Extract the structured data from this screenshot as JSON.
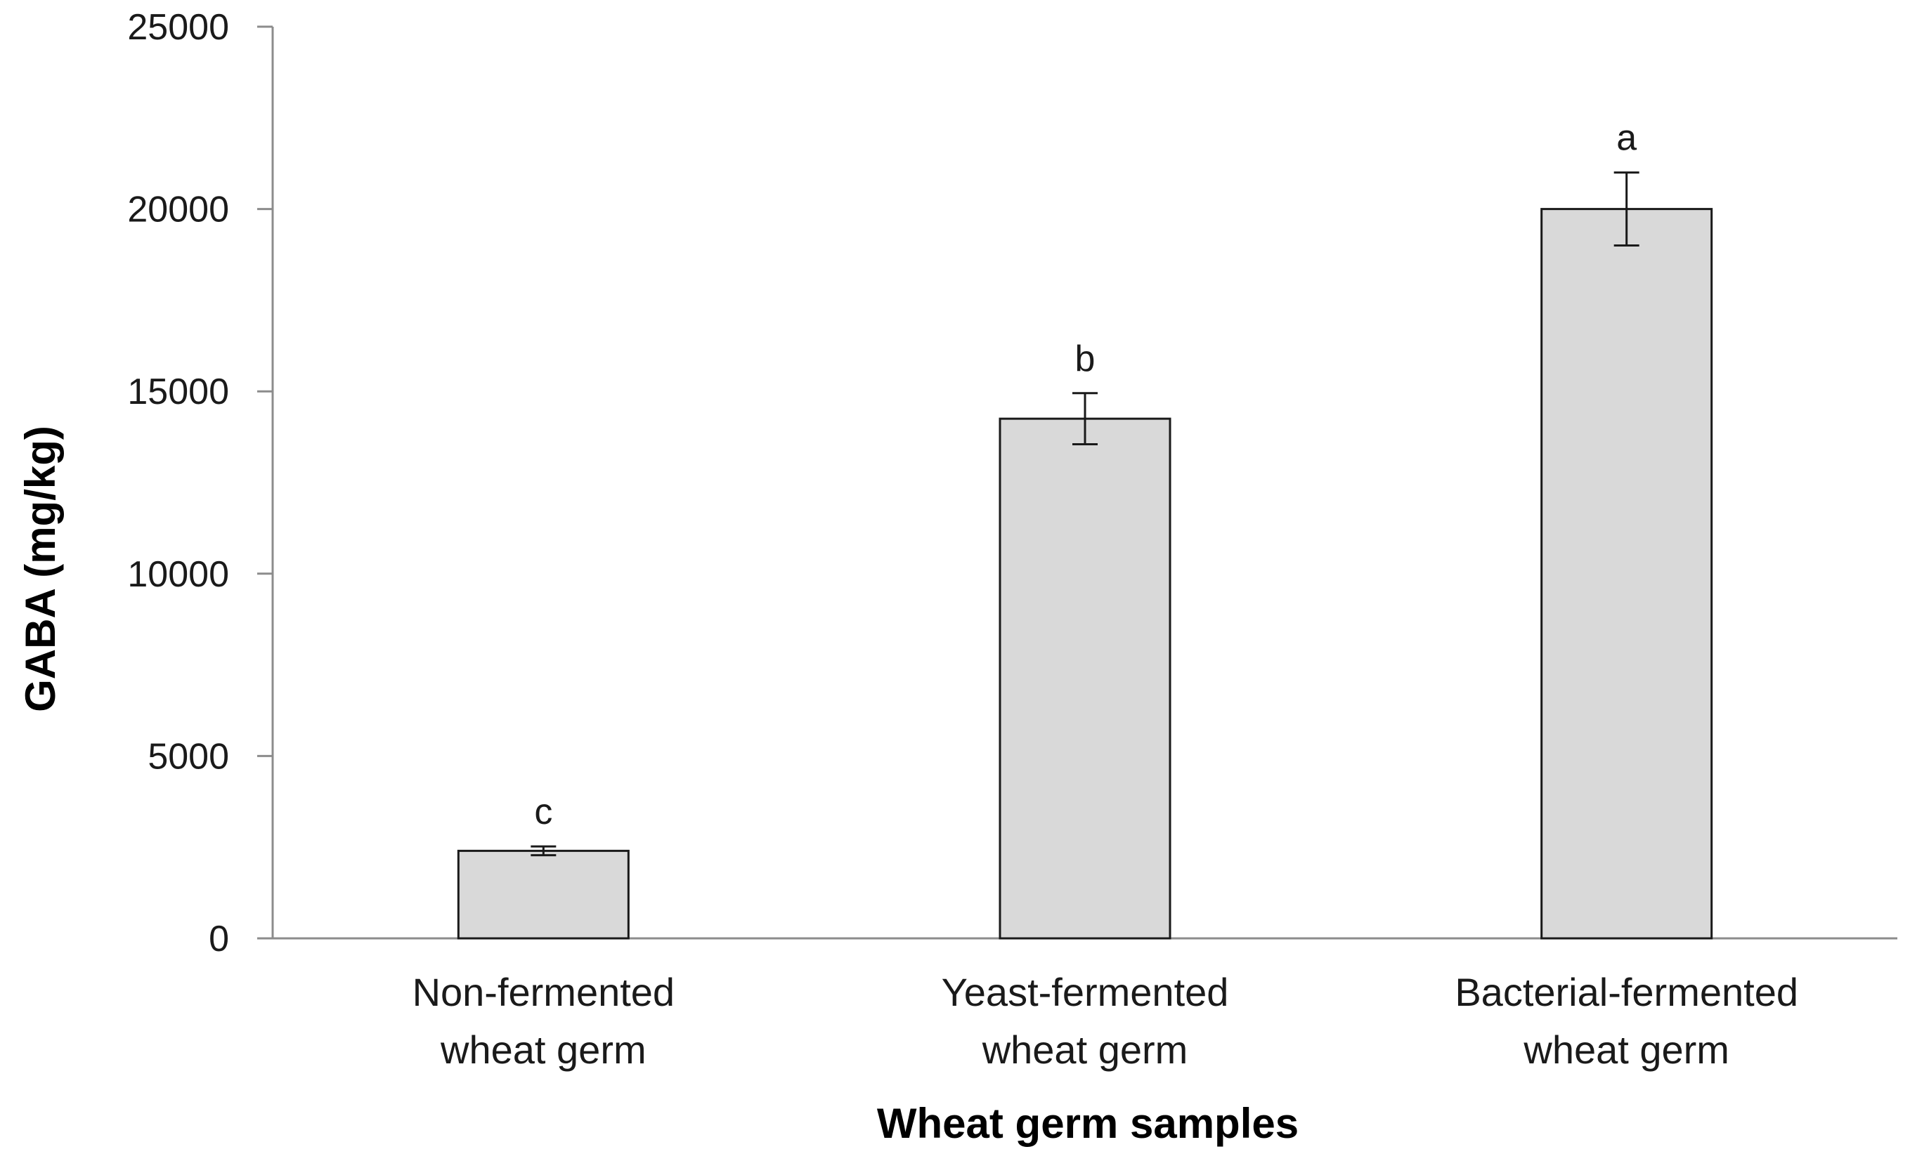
{
  "chart_data": {
    "type": "bar",
    "title": "",
    "xlabel": "Wheat germ samples",
    "ylabel": "GABA (mg/kg)",
    "ylim": [
      0,
      25000
    ],
    "yticks": [
      "0",
      "5000",
      "10000",
      "15000",
      "20000",
      "25000"
    ],
    "categories": [
      [
        "Non-fermented",
        "wheat germ"
      ],
      [
        "Yeast-fermented",
        "wheat germ"
      ],
      [
        "Bacterial-fermented",
        "wheat germ"
      ]
    ],
    "values": [
      2400,
      14250,
      20000
    ],
    "errors": [
      120,
      700,
      1000
    ],
    "significance_labels": [
      "c",
      "b",
      "a"
    ],
    "grid": false,
    "legend": "none",
    "bar_fill": "#d9d9d9",
    "bar_stroke": "#1a1a1a",
    "axis_color": "#8c8c8c"
  }
}
